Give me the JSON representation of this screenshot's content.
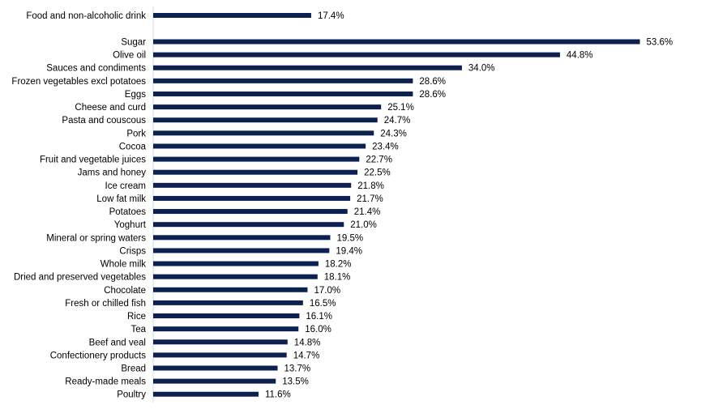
{
  "chart_data": {
    "type": "bar",
    "orientation": "horizontal",
    "title": "",
    "xlabel": "",
    "ylabel": "",
    "xlim": [
      0,
      55
    ],
    "grid": false,
    "legend": "none",
    "bar_color": "#0d2150",
    "value_suffix": "%",
    "categories": [
      "Food and non-alcoholic drink",
      "Sugar",
      "Olive oil",
      "Sauces and condiments",
      "Frozen vegetables excl potatoes",
      "Eggs",
      "Cheese and curd",
      "Pasta and couscous",
      "Pork",
      "Cocoa",
      "Fruit and vegetable juices",
      "Jams and honey",
      "Ice cream",
      "Low fat milk",
      "Potatoes",
      "Yoghurt",
      "Mineral or spring waters",
      "Crisps",
      "Whole milk",
      "Dried and preserved vegetables",
      "Chocolate",
      "Fresh or chilled fish",
      "Rice",
      "Tea",
      "Beef and veal",
      "Confectionery products",
      "Bread",
      "Ready-made meals",
      "Poultry"
    ],
    "values": [
      17.4,
      53.6,
      44.8,
      34.0,
      28.6,
      28.6,
      25.1,
      24.7,
      24.3,
      23.4,
      22.7,
      22.5,
      21.8,
      21.7,
      21.4,
      21.0,
      19.5,
      19.4,
      18.2,
      18.1,
      17.0,
      16.5,
      16.1,
      16.0,
      14.8,
      14.7,
      13.7,
      13.5,
      11.6
    ],
    "value_labels": [
      "17.4%",
      "53.6%",
      "44.8%",
      "34.0%",
      "28.6%",
      "28.6%",
      "25.1%",
      "24.7%",
      "24.3%",
      "23.4%",
      "22.7%",
      "22.5%",
      "21.8%",
      "21.7%",
      "21.4%",
      "21.0%",
      "19.5%",
      "19.4%",
      "18.2%",
      "18.1%",
      "17.0%",
      "16.5%",
      "16.1%",
      "16.0%",
      "14.8%",
      "14.7%",
      "13.7%",
      "13.5%",
      "11.6%"
    ],
    "gap_after_first": true
  }
}
